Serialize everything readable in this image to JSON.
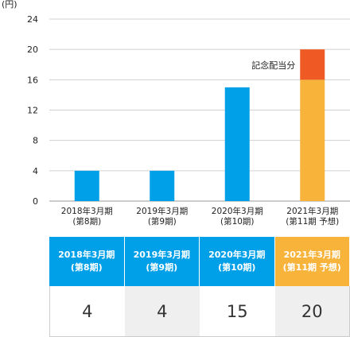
{
  "chart_data": {
    "type": "bar",
    "unit_label": "(円)",
    "categories": [
      [
        "2018年3月期",
        "(第8期)"
      ],
      [
        "2019年3月期",
        "(第9期)"
      ],
      [
        "2020年3月期",
        "(第10期)"
      ],
      [
        "2021年3月期",
        "(第11期 予想)"
      ]
    ],
    "values": [
      4,
      4,
      15,
      16
    ],
    "extra": {
      "index": 3,
      "value": 4,
      "label": "記念配当分"
    },
    "yticks": [
      0,
      4,
      8,
      12,
      16,
      20,
      24
    ],
    "ylim": [
      0,
      24
    ],
    "grid": true,
    "colors": {
      "bar": "#00a0e9",
      "bar_forecast": "#f8b33a",
      "extra": "#ef5a24",
      "grid": "#d0d0d0"
    }
  },
  "table": {
    "headers": [
      "2018年3月期\n(第8期)",
      "2019年3月期\n(第9期)",
      "2020年3月期\n(第10期)",
      "2021年3月期\n(第11期 予想)"
    ],
    "values": [
      "4",
      "4",
      "15",
      "20"
    ],
    "header_colors": [
      "#00a0e9",
      "#00a0e9",
      "#00a0e9",
      "#f8b33a"
    ]
  }
}
